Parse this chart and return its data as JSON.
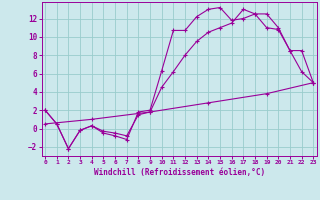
{
  "xlabel": "Windchill (Refroidissement éolien,°C)",
  "bg_color": "#cce8ec",
  "grid_color": "#99cccc",
  "line_color": "#990099",
  "x_ticks": [
    0,
    1,
    2,
    3,
    4,
    5,
    6,
    7,
    8,
    9,
    10,
    11,
    12,
    13,
    14,
    15,
    16,
    17,
    18,
    19,
    20,
    21,
    22,
    23
  ],
  "y_ticks": [
    -2,
    0,
    2,
    4,
    6,
    8,
    10,
    12
  ],
  "xlim": [
    -0.3,
    23.3
  ],
  "ylim": [
    -3.0,
    13.8
  ],
  "line1_x": [
    0,
    1,
    2,
    3,
    4,
    5,
    6,
    7,
    8,
    9,
    10,
    11,
    12,
    13,
    14,
    15,
    16,
    17,
    18,
    19,
    20,
    21,
    22,
    23
  ],
  "line1_y": [
    2.0,
    0.5,
    -2.2,
    -0.2,
    0.3,
    -0.5,
    -0.8,
    -1.2,
    1.8,
    2.0,
    6.3,
    10.7,
    10.7,
    12.2,
    13.0,
    13.2,
    11.8,
    12.0,
    12.5,
    11.0,
    10.8,
    8.5,
    6.2,
    5.0
  ],
  "line2_x": [
    0,
    1,
    2,
    3,
    4,
    5,
    6,
    7,
    8,
    9,
    10,
    11,
    12,
    13,
    14,
    15,
    16,
    17,
    18,
    19,
    20,
    21,
    22,
    23
  ],
  "line2_y": [
    2.0,
    0.5,
    -2.2,
    -0.2,
    0.3,
    -0.3,
    -0.5,
    -0.8,
    1.5,
    1.8,
    4.5,
    6.2,
    8.0,
    9.5,
    10.5,
    11.0,
    11.5,
    13.0,
    12.5,
    12.5,
    11.0,
    8.5,
    8.5,
    5.0
  ],
  "line3_x": [
    0,
    4,
    9,
    14,
    19,
    23
  ],
  "line3_y": [
    0.5,
    1.0,
    1.8,
    2.8,
    3.8,
    5.0
  ]
}
